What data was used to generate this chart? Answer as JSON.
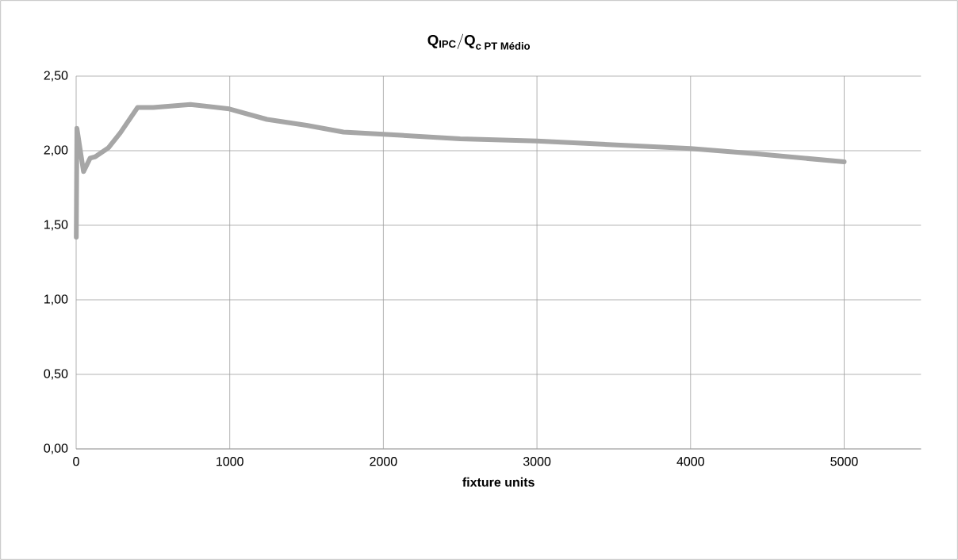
{
  "chart_data": {
    "type": "line",
    "title": "\\mathbf{Q}_{\\textbf{IPC}}\\mathbf{/Q}_{\\textbf{c PT Médio}}",
    "xlabel": "fixture units",
    "x": [
      1,
      5,
      48,
      91,
      125,
      211,
      288,
      400,
      502,
      744,
      997,
      1242,
      1500,
      1740,
      2000,
      2500,
      3000,
      4000,
      4420,
      5000
    ],
    "series": [
      {
        "color": "#a6a6a6",
        "values": [
          1.42,
          2.15,
          1.86,
          1.95,
          1.96,
          2.02,
          2.12,
          2.29,
          2.29,
          2.31,
          2.28,
          2.21,
          2.17,
          2.125,
          2.11,
          2.08,
          2.065,
          2.015,
          1.98,
          1.925
        ]
      }
    ],
    "xlim": [
      0,
      5500
    ],
    "xticks": [
      0,
      1000,
      2000,
      3000,
      4000,
      5000
    ],
    "ylim": [
      0,
      2.5
    ],
    "yticks": [
      {
        "value": 0,
        "label": "0,00"
      },
      {
        "value": 0.5,
        "label": "0,50"
      },
      {
        "value": 1,
        "label": "1,00"
      },
      {
        "value": 1.5,
        "label": "1,50"
      },
      {
        "value": 2,
        "label": "2,00"
      },
      {
        "value": 2.5,
        "label": "2,50"
      }
    ],
    "grid": true,
    "marker": "none",
    "line_style": "solid"
  }
}
